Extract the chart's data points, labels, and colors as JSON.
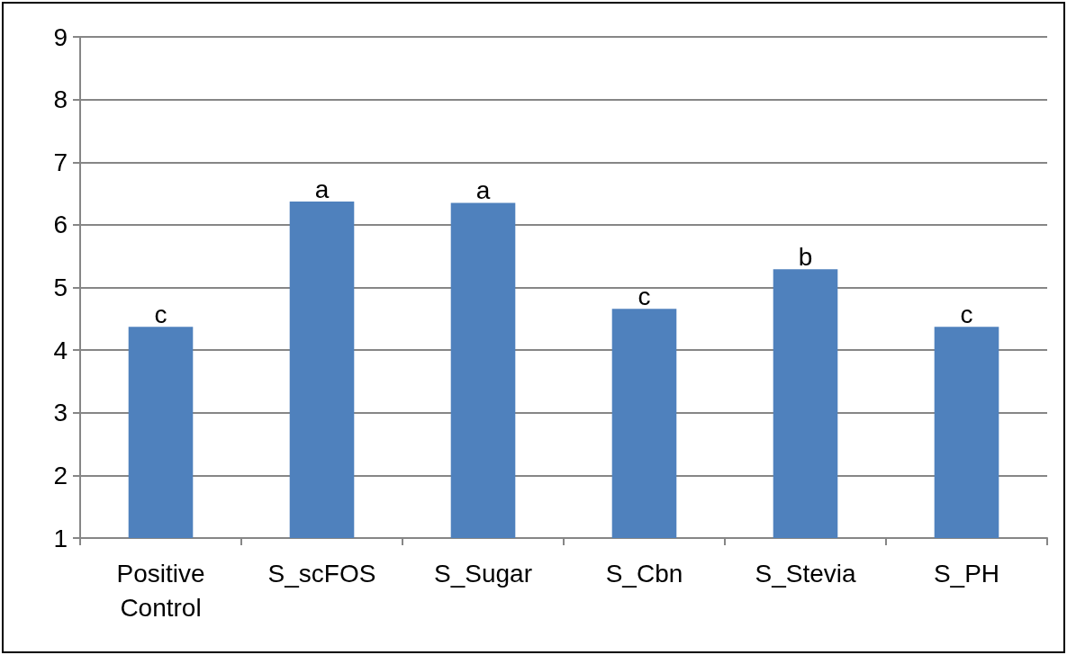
{
  "chart_data": {
    "type": "bar",
    "categories": [
      "Positive Control",
      "S_scFOS",
      "S_Sugar",
      "S_Cbn",
      "S_Stevia",
      "S_PH"
    ],
    "values": [
      4.37,
      6.37,
      6.35,
      4.66,
      5.29,
      4.37
    ],
    "color": "#4f81bd",
    "ylim": [
      1,
      9
    ],
    "yticks": [
      1,
      2,
      3,
      4,
      5,
      6,
      7,
      8,
      9
    ],
    "grid": "y",
    "annotations": [
      {
        "text": "c",
        "x": "Positive Control",
        "y": 4.37
      },
      {
        "text": "a",
        "x": "S_scFOS",
        "y": 6.37
      },
      {
        "text": "a",
        "x": "S_Sugar",
        "y": 6.35
      },
      {
        "text": "c",
        "x": "S_Cbn",
        "y": 4.66
      },
      {
        "text": "b",
        "x": "S_Stevia",
        "y": 5.29
      },
      {
        "text": "c",
        "x": "S_PH",
        "y": 4.37
      }
    ]
  }
}
